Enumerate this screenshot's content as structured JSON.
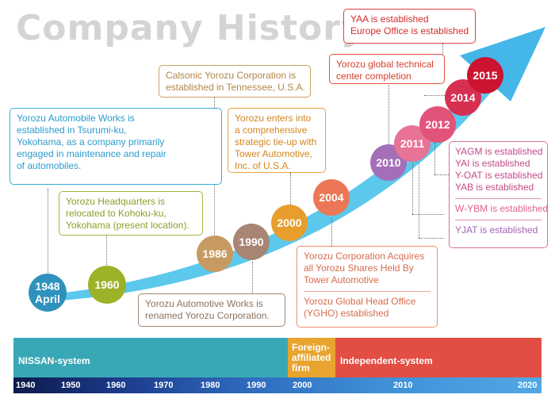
{
  "title": "Company History",
  "years": {
    "y1948": [
      "1948",
      "April"
    ],
    "y1960": "1960",
    "y1986": "1986",
    "y1990": "1990",
    "y2000": "2000",
    "y2004": "2004",
    "y2010": "2010",
    "y2011": "2011",
    "y2012": "2012",
    "y2014": "2014",
    "y2015": "2015"
  },
  "events": {
    "e1948": [
      "Yorozu Automobile Works is",
      "established in Tsurumi-ku,",
      "Yokohama, as a company primarily",
      "engaged in maintenance and repair",
      "of automobiles."
    ],
    "e1960": [
      "Yorozu Headquarters is",
      "relocated to Kohoku-ku,",
      "Yokohama (present location)."
    ],
    "e1986": [
      "Calsonic Yorozu Corporation is",
      "established in Tennessee, U.S.A."
    ],
    "e1990": [
      "Yorozu Automotive Works is",
      "renamed Yorozu Corporation."
    ],
    "e2000": [
      "Yorozu enters into",
      "a comprehensive",
      "strategic tie-up with",
      "Tower Automotive,",
      "Inc. of U.S.A."
    ],
    "e2004a": [
      "Yorozu Corporation Acquires",
      "all Yorozu Shares Held By",
      "Tower Automotive"
    ],
    "e2004b": [
      "Yorozu Global Head Office",
      "(YGHO)  established"
    ],
    "e2010": [
      "Yorozu global technical",
      "center completion"
    ],
    "e2015": [
      "YAA is established",
      "Europe Office is established"
    ],
    "e2012": [
      "YAGM is established",
      "YAI is established",
      "Y-OAT is established",
      "YAB is established"
    ],
    "e2011": "W-YBM is established",
    "e2010b": "YJAT is established"
  },
  "eras": {
    "nissan": "NISSAN-system",
    "foreign": [
      "Foreign-",
      "affiliated",
      "firm"
    ],
    "independent": "Independent-system"
  },
  "decades": [
    "1940",
    "1950",
    "1960",
    "1970",
    "1980",
    "1990",
    "2000",
    "2010",
    "2020"
  ],
  "colors": {
    "arrow": "#5bc8ec",
    "nissan_band": "#39a8b6",
    "foreign_band": "#e8a42e",
    "independent_band": "#e24e43"
  }
}
